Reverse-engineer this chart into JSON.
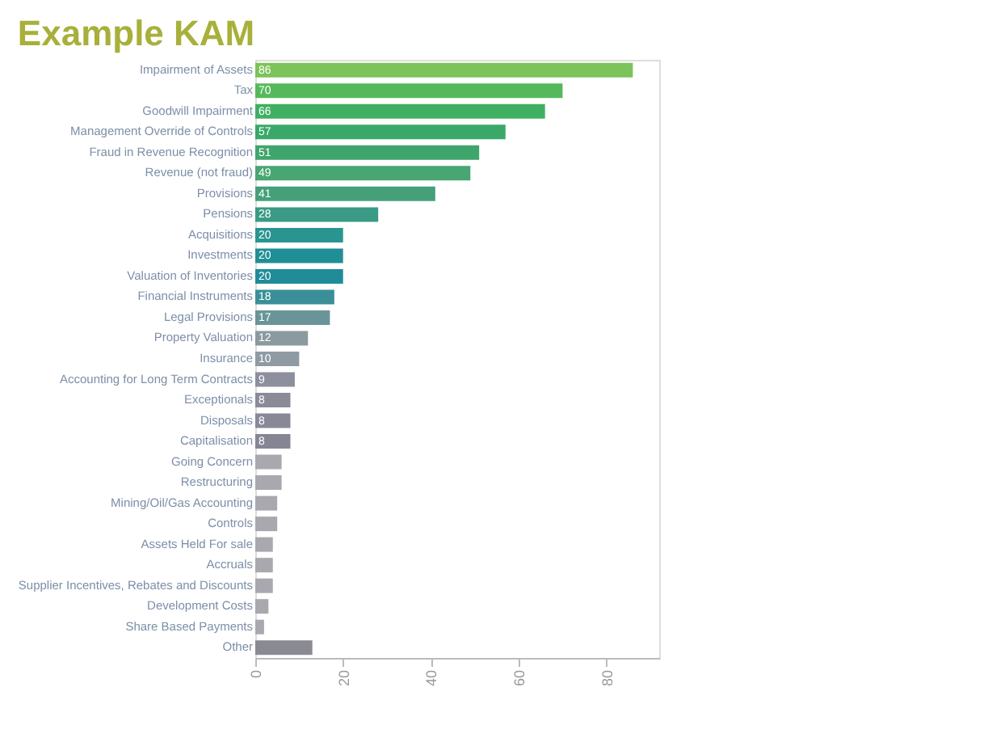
{
  "chart_data": {
    "type": "bar",
    "orientation": "horizontal",
    "title": "Example KAM",
    "categories": [
      "Impairment of Assets",
      "Tax",
      "Goodwill Impairment",
      "Management Override of Controls",
      "Fraud in Revenue Recognition",
      "Revenue (not fraud)",
      "Provisions",
      "Pensions",
      "Acquisitions",
      "Investments",
      "Valuation of Inventories",
      "Financial Instruments",
      "Legal Provisions",
      "Property Valuation",
      "Insurance",
      "Accounting for Long Term Contracts",
      "Exceptionals",
      "Disposals",
      "Capitalisation",
      "Going Concern",
      "Restructuring",
      "Mining/Oil/Gas Accounting",
      "Controls",
      "Assets Held For sale",
      "Accruals",
      "Supplier Incentives, Rebates and Discounts",
      "Development Costs",
      "Share Based Payments",
      "Other"
    ],
    "values": [
      86,
      70,
      66,
      57,
      51,
      49,
      41,
      28,
      20,
      20,
      20,
      18,
      17,
      12,
      10,
      9,
      8,
      8,
      8,
      6,
      6,
      5,
      5,
      4,
      4,
      4,
      3,
      2,
      13
    ],
    "value_labels": [
      "86",
      "70",
      "66",
      "57",
      "51",
      "49",
      "41",
      "28",
      "20",
      "20",
      "20",
      "18",
      "17",
      "12",
      "10",
      "9",
      "8",
      "8",
      "8",
      null,
      null,
      null,
      null,
      null,
      null,
      null,
      null,
      null,
      null
    ],
    "colors": [
      "#7cc35a",
      "#55b95c",
      "#3fb062",
      "#3aa868",
      "#40a56c",
      "#48a672",
      "#45a07a",
      "#3a9a85",
      "#2a9490",
      "#208f95",
      "#1f8c98",
      "#3a8f98",
      "#6a9598",
      "#8a9a9f",
      "#909aa3",
      "#8d8e9e",
      "#8a8a98",
      "#888896",
      "#858594",
      "#a8a8ae",
      "#a8a8ae",
      "#a8a8ae",
      "#a8a8ae",
      "#a8a8ae",
      "#a8a8ae",
      "#a8a8ae",
      "#a8a8ae",
      "#a8a8ae",
      "#8a8a92"
    ],
    "xlim": [
      0,
      92
    ],
    "xticks": [
      0,
      20,
      40,
      60,
      80
    ],
    "grid": false
  }
}
